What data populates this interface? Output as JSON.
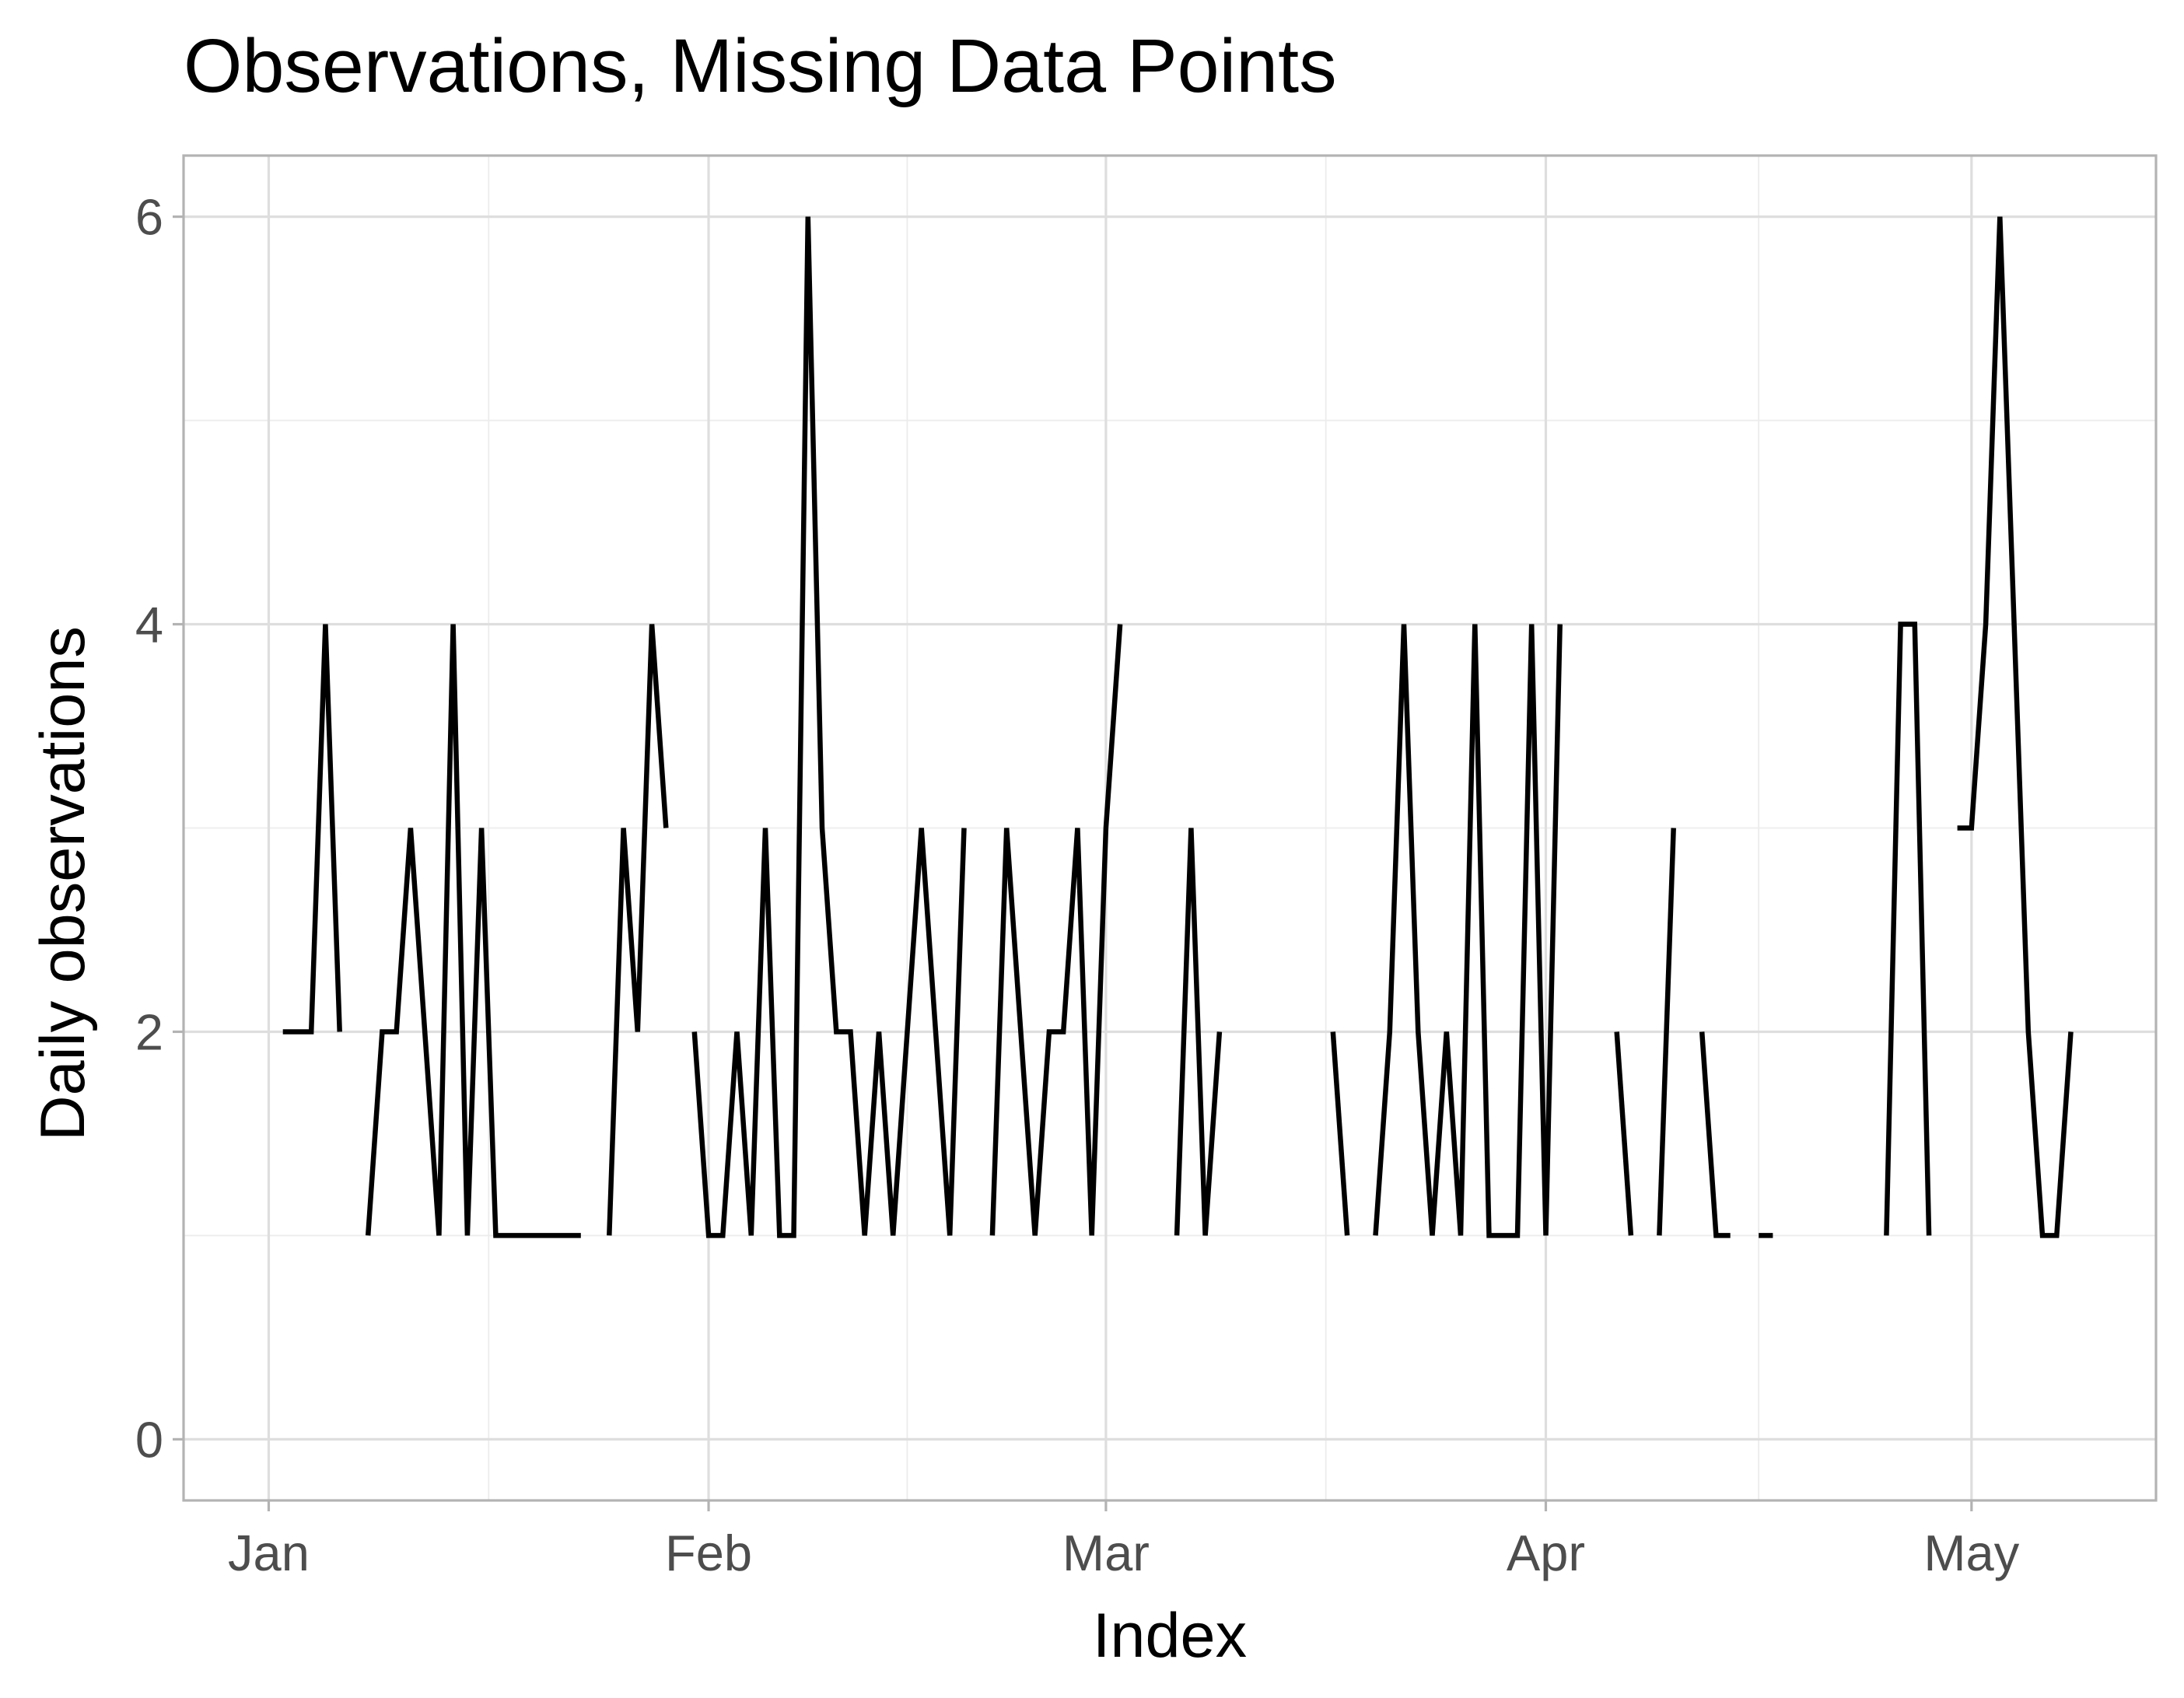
{
  "chart_data": {
    "type": "line",
    "title": "Observations, Missing Data Points",
    "xlabel": "Index",
    "ylabel": "Daily observations",
    "x_tick_labels": [
      {
        "label": "Jan",
        "date": "2021-01-01"
      },
      {
        "label": "Feb",
        "date": "2021-02-01"
      },
      {
        "label": "Mar",
        "date": "2021-03-01"
      },
      {
        "label": "Apr",
        "date": "2021-04-01"
      },
      {
        "label": "May",
        "date": "2021-05-01"
      }
    ],
    "y_ticks": [
      0,
      2,
      4,
      6
    ],
    "xlim": [
      "2020-12-26",
      "2021-05-14"
    ],
    "ylim": [
      -0.3,
      6.3
    ],
    "grid": true,
    "series": [
      {
        "color": "#000000",
        "points": [
          [
            "2021-01-02",
            2
          ],
          [
            "2021-01-03",
            2
          ],
          [
            "2021-01-04",
            2
          ],
          [
            "2021-01-05",
            4
          ],
          [
            "2021-01-06",
            2
          ],
          [
            "2021-01-07",
            null
          ],
          [
            "2021-01-08",
            1
          ],
          [
            "2021-01-09",
            2
          ],
          [
            "2021-01-10",
            2
          ],
          [
            "2021-01-11",
            3
          ],
          [
            "2021-01-12",
            2
          ],
          [
            "2021-01-13",
            1
          ],
          [
            "2021-01-14",
            4
          ],
          [
            "2021-01-15",
            1
          ],
          [
            "2021-01-16",
            3
          ],
          [
            "2021-01-17",
            1
          ],
          [
            "2021-01-18",
            1
          ],
          [
            "2021-01-19",
            1
          ],
          [
            "2021-01-20",
            1
          ],
          [
            "2021-01-21",
            1
          ],
          [
            "2021-01-22",
            1
          ],
          [
            "2021-01-23",
            1
          ],
          [
            "2021-01-24",
            null
          ],
          [
            "2021-01-25",
            1
          ],
          [
            "2021-01-26",
            3
          ],
          [
            "2021-01-27",
            2
          ],
          [
            "2021-01-28",
            4
          ],
          [
            "2021-01-29",
            3
          ],
          [
            "2021-01-30",
            null
          ],
          [
            "2021-01-31",
            2
          ],
          [
            "2021-02-01",
            1
          ],
          [
            "2021-02-02",
            1
          ],
          [
            "2021-02-03",
            2
          ],
          [
            "2021-02-04",
            1
          ],
          [
            "2021-02-05",
            3
          ],
          [
            "2021-02-06",
            1
          ],
          [
            "2021-02-07",
            1
          ],
          [
            "2021-02-08",
            6
          ],
          [
            "2021-02-09",
            3
          ],
          [
            "2021-02-10",
            2
          ],
          [
            "2021-02-11",
            2
          ],
          [
            "2021-02-12",
            1
          ],
          [
            "2021-02-13",
            2
          ],
          [
            "2021-02-14",
            1
          ],
          [
            "2021-02-15",
            2
          ],
          [
            "2021-02-16",
            3
          ],
          [
            "2021-02-17",
            2
          ],
          [
            "2021-02-18",
            1
          ],
          [
            "2021-02-19",
            3
          ],
          [
            "2021-02-20",
            null
          ],
          [
            "2021-02-21",
            1
          ],
          [
            "2021-02-22",
            3
          ],
          [
            "2021-02-23",
            2
          ],
          [
            "2021-02-24",
            1
          ],
          [
            "2021-02-25",
            2
          ],
          [
            "2021-02-26",
            2
          ],
          [
            "2021-02-27",
            3
          ],
          [
            "2021-02-28",
            1
          ],
          [
            "2021-03-01",
            3
          ],
          [
            "2021-03-02",
            4
          ],
          [
            "2021-03-03",
            null
          ],
          [
            "2021-03-04",
            null
          ],
          [
            "2021-03-05",
            null
          ],
          [
            "2021-03-06",
            1
          ],
          [
            "2021-03-07",
            3
          ],
          [
            "2021-03-08",
            1
          ],
          [
            "2021-03-09",
            2
          ],
          [
            "2021-03-10",
            null
          ],
          [
            "2021-03-11",
            null
          ],
          [
            "2021-03-12",
            null
          ],
          [
            "2021-03-13",
            null
          ],
          [
            "2021-03-14",
            null
          ],
          [
            "2021-03-15",
            null
          ],
          [
            "2021-03-16",
            null
          ],
          [
            "2021-03-17",
            2
          ],
          [
            "2021-03-18",
            1
          ],
          [
            "2021-03-19",
            null
          ],
          [
            "2021-03-20",
            1
          ],
          [
            "2021-03-21",
            2
          ],
          [
            "2021-03-22",
            4
          ],
          [
            "2021-03-23",
            2
          ],
          [
            "2021-03-24",
            1
          ],
          [
            "2021-03-25",
            2
          ],
          [
            "2021-03-26",
            1
          ],
          [
            "2021-03-27",
            4
          ],
          [
            "2021-03-28",
            1
          ],
          [
            "2021-03-29",
            1
          ],
          [
            "2021-03-30",
            1
          ],
          [
            "2021-03-31",
            4
          ],
          [
            "2021-04-01",
            1
          ],
          [
            "2021-04-02",
            4
          ],
          [
            "2021-04-03",
            null
          ],
          [
            "2021-04-04",
            null
          ],
          [
            "2021-04-05",
            null
          ],
          [
            "2021-04-06",
            2
          ],
          [
            "2021-04-07",
            1
          ],
          [
            "2021-04-08",
            null
          ],
          [
            "2021-04-09",
            1
          ],
          [
            "2021-04-10",
            3
          ],
          [
            "2021-04-11",
            null
          ],
          [
            "2021-04-12",
            2
          ],
          [
            "2021-04-13",
            1
          ],
          [
            "2021-04-14",
            1
          ],
          [
            "2021-04-15",
            null
          ],
          [
            "2021-04-16",
            1
          ],
          [
            "2021-04-17",
            1
          ],
          [
            "2021-04-18",
            null
          ],
          [
            "2021-04-19",
            null
          ],
          [
            "2021-04-20",
            null
          ],
          [
            "2021-04-21",
            null
          ],
          [
            "2021-04-22",
            null
          ],
          [
            "2021-04-23",
            null
          ],
          [
            "2021-04-24",
            null
          ],
          [
            "2021-04-25",
            1
          ],
          [
            "2021-04-26",
            4
          ],
          [
            "2021-04-27",
            4
          ],
          [
            "2021-04-28",
            1
          ],
          [
            "2021-04-29",
            null
          ],
          [
            "2021-04-30",
            3
          ],
          [
            "2021-05-01",
            3
          ],
          [
            "2021-05-02",
            4
          ],
          [
            "2021-05-03",
            6
          ],
          [
            "2021-05-04",
            4
          ],
          [
            "2021-05-05",
            2
          ],
          [
            "2021-05-06",
            1
          ],
          [
            "2021-05-07",
            1
          ],
          [
            "2021-05-08",
            2
          ]
        ]
      }
    ]
  }
}
